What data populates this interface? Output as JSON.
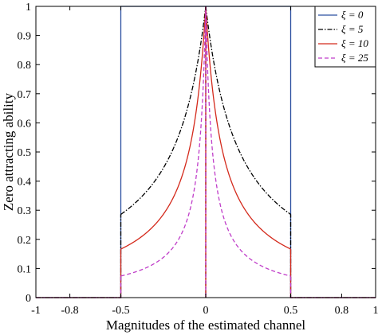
{
  "chart_data": {
    "type": "line",
    "title": "",
    "xlabel": "Magnitudes of the estimated channel",
    "ylabel": "Zero attracting ability",
    "xlim": [
      -1,
      1
    ],
    "ylim": [
      0,
      1
    ],
    "xticks": [
      "-1",
      "-0.8",
      "-0.5",
      "0",
      "0.5",
      "0.8",
      "1"
    ],
    "xtick_values": [
      -1,
      -0.8,
      -0.5,
      0,
      0.5,
      0.8,
      1
    ],
    "yticks": [
      "0",
      "0.1",
      "0.2",
      "0.3",
      "0.4",
      "0.5",
      "0.6",
      "0.7",
      "0.8",
      "0.9",
      "1"
    ],
    "ytick_values": [
      0,
      0.1,
      0.2,
      0.3,
      0.4,
      0.5,
      0.6,
      0.7,
      0.8,
      0.9,
      1
    ],
    "grid": false,
    "legend_position": "top-right",
    "support": [
      -0.5,
      0.5
    ],
    "series": [
      {
        "name": "ξ = 0",
        "xi": 0,
        "color": "#2b4fa0",
        "dash": "solid",
        "x": [
          -1,
          -0.5,
          -0.5,
          0.5,
          0.5,
          1
        ],
        "y": [
          0,
          0,
          1,
          1,
          0,
          0
        ]
      },
      {
        "name": "ξ = 5",
        "xi": 5,
        "color": "#000000",
        "dash": "dashdot",
        "x": [
          -0.5,
          -0.25,
          -0.1,
          0,
          0.1,
          0.25,
          0.5
        ],
        "y": [
          0.286,
          0.444,
          0.667,
          1,
          0.667,
          0.444,
          0.286
        ]
      },
      {
        "name": "ξ = 10",
        "xi": 10,
        "color": "#d42a1c",
        "dash": "solid",
        "x": [
          -0.5,
          -0.25,
          -0.1,
          0,
          0.1,
          0.25,
          0.5
        ],
        "y": [
          0.167,
          0.286,
          0.5,
          1,
          0.5,
          0.286,
          0.167
        ]
      },
      {
        "name": "ξ = 25",
        "xi": 25,
        "color": "#c03ec9",
        "dash": "dashed",
        "x": [
          -0.5,
          -0.25,
          -0.1,
          0,
          0.1,
          0.25,
          0.5
        ],
        "y": [
          0.074,
          0.138,
          0.286,
          1,
          0.286,
          0.138,
          0.074
        ]
      }
    ]
  }
}
